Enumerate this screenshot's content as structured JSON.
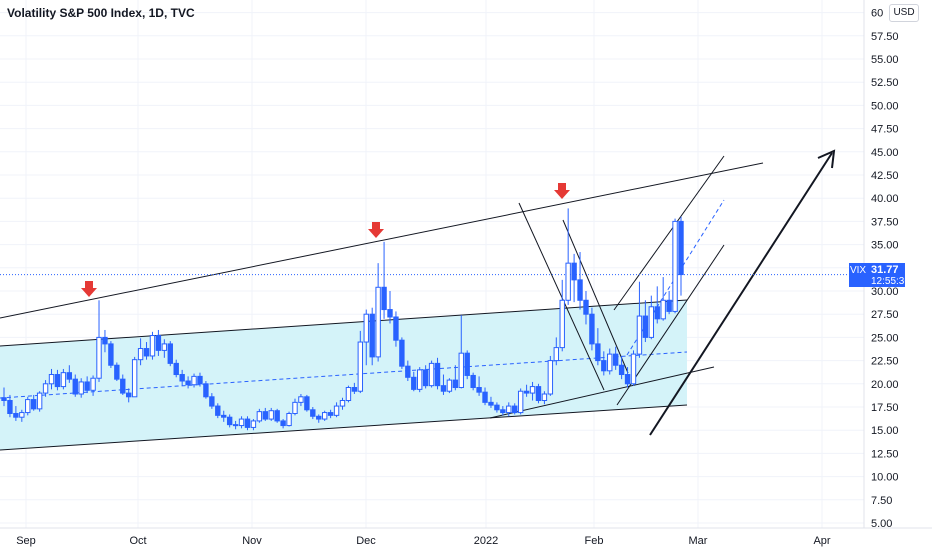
{
  "header": {
    "title": "Volatility S&P 500 Index, 1D, TVC",
    "currency": "USD"
  },
  "price_tag": {
    "symbol": "VIX",
    "last": "31.77",
    "countdown": "12:55:36"
  },
  "colors": {
    "up": "#2962ff",
    "down": "#2962ff",
    "channel_fill": "#d4f3f9",
    "arrow_red": "#e53935",
    "grid": "#f0f3fa",
    "last_price_line": "#2962ff"
  },
  "chart_data": {
    "type": "candlestick",
    "symbol": "VIX",
    "interval": "1D",
    "source": "TVC",
    "y_axis_labels": [
      "60",
      "57.50",
      "55.00",
      "52.50",
      "50.00",
      "47.50",
      "45.00",
      "42.50",
      "40.00",
      "37.50",
      "35.00",
      "32.50",
      "30.00",
      "27.50",
      "25.00",
      "22.50",
      "20.00",
      "17.50",
      "15.00",
      "12.50",
      "10.00",
      "7.50",
      "5.00"
    ],
    "ylim": [
      3.5,
      61
    ],
    "x_axis_labels": [
      "Sep",
      "Oct",
      "Nov",
      "Dec",
      "2022",
      "Feb",
      "Mar",
      "Apr"
    ],
    "last_price": 31.77,
    "ohlc": [
      [
        18.5,
        19.6,
        17.6,
        18.2
      ],
      [
        18.2,
        18.8,
        16.4,
        16.8
      ],
      [
        16.8,
        17.6,
        16.0,
        16.4
      ],
      [
        16.4,
        17.2,
        15.9,
        16.9
      ],
      [
        16.9,
        18.6,
        16.6,
        18.3
      ],
      [
        18.3,
        18.8,
        17.1,
        17.3
      ],
      [
        17.3,
        19.2,
        17.0,
        19.0
      ],
      [
        19.0,
        20.4,
        18.6,
        20.0
      ],
      [
        20.0,
        21.6,
        19.4,
        21.0
      ],
      [
        21.0,
        21.5,
        19.3,
        19.7
      ],
      [
        19.7,
        21.6,
        19.4,
        21.2
      ],
      [
        21.2,
        22.0,
        20.1,
        20.5
      ],
      [
        20.5,
        21.0,
        18.6,
        18.9
      ],
      [
        18.9,
        20.6,
        18.5,
        20.2
      ],
      [
        20.2,
        20.8,
        19.0,
        19.3
      ],
      [
        19.3,
        20.9,
        18.7,
        20.6
      ],
      [
        20.6,
        29.0,
        20.2,
        25.0
      ],
      [
        25.0,
        25.8,
        23.4,
        24.3
      ],
      [
        24.3,
        24.6,
        21.7,
        22.0
      ],
      [
        22.0,
        22.3,
        20.3,
        20.5
      ],
      [
        20.5,
        21.0,
        18.8,
        19.0
      ],
      [
        19.0,
        19.5,
        18.0,
        18.6
      ],
      [
        18.6,
        22.9,
        18.6,
        22.6
      ],
      [
        22.6,
        24.9,
        22.0,
        23.8
      ],
      [
        23.8,
        24.5,
        22.6,
        23.0
      ],
      [
        23.0,
        25.6,
        22.6,
        25.2
      ],
      [
        25.2,
        25.8,
        23.0,
        23.6
      ],
      [
        23.6,
        24.8,
        22.8,
        24.3
      ],
      [
        24.3,
        24.6,
        21.9,
        22.2
      ],
      [
        22.2,
        22.6,
        20.7,
        21.0
      ],
      [
        21.0,
        21.5,
        19.8,
        20.3
      ],
      [
        20.3,
        20.8,
        19.5,
        19.9
      ],
      [
        19.9,
        21.1,
        19.6,
        20.8
      ],
      [
        20.8,
        21.2,
        19.7,
        20.0
      ],
      [
        20.0,
        20.3,
        18.4,
        18.6
      ],
      [
        18.6,
        19.0,
        17.3,
        17.6
      ],
      [
        17.6,
        17.9,
        16.3,
        16.6
      ],
      [
        16.6,
        17.1,
        15.9,
        16.4
      ],
      [
        16.4,
        16.7,
        15.3,
        15.6
      ],
      [
        15.6,
        16.0,
        15.1,
        15.5
      ],
      [
        15.5,
        16.5,
        15.2,
        16.2
      ],
      [
        16.2,
        16.5,
        15.0,
        15.3
      ],
      [
        15.3,
        16.2,
        15.0,
        16.0
      ],
      [
        16.0,
        17.3,
        15.8,
        17.0
      ],
      [
        17.0,
        17.4,
        16.0,
        16.2
      ],
      [
        16.2,
        17.4,
        16.0,
        17.1
      ],
      [
        17.1,
        17.3,
        15.8,
        16.0
      ],
      [
        16.0,
        16.2,
        15.2,
        15.5
      ],
      [
        15.5,
        17.0,
        15.4,
        16.8
      ],
      [
        16.8,
        18.4,
        16.6,
        18.0
      ],
      [
        18.0,
        18.9,
        17.6,
        18.6
      ],
      [
        18.6,
        18.8,
        17.0,
        17.2
      ],
      [
        17.2,
        17.5,
        16.2,
        16.5
      ],
      [
        16.5,
        16.7,
        15.8,
        16.2
      ],
      [
        16.2,
        17.1,
        16.0,
        16.9
      ],
      [
        16.9,
        17.2,
        16.3,
        16.6
      ],
      [
        16.6,
        18.0,
        16.4,
        17.6
      ],
      [
        17.6,
        18.5,
        17.2,
        18.2
      ],
      [
        18.2,
        19.8,
        18.0,
        19.6
      ],
      [
        19.6,
        20.1,
        18.9,
        19.2
      ],
      [
        19.2,
        25.7,
        19.0,
        24.5
      ],
      [
        24.5,
        28.0,
        22.0,
        27.5
      ],
      [
        27.5,
        28.2,
        22.0,
        22.9
      ],
      [
        22.9,
        33.0,
        22.4,
        30.4
      ],
      [
        30.4,
        35.3,
        27.0,
        28.0
      ],
      [
        28.0,
        30.0,
        26.5,
        27.2
      ],
      [
        27.2,
        27.8,
        24.0,
        24.7
      ],
      [
        24.7,
        25.0,
        21.6,
        21.9
      ],
      [
        21.9,
        22.5,
        20.3,
        20.7
      ],
      [
        20.7,
        21.3,
        19.2,
        19.4
      ],
      [
        19.4,
        21.8,
        19.1,
        21.5
      ],
      [
        21.5,
        22.0,
        19.5,
        19.8
      ],
      [
        19.8,
        22.5,
        19.6,
        22.2
      ],
      [
        22.2,
        22.8,
        19.4,
        19.8
      ],
      [
        19.8,
        21.0,
        18.8,
        19.2
      ],
      [
        19.2,
        20.6,
        19.0,
        20.4
      ],
      [
        20.4,
        22.0,
        19.3,
        19.6
      ],
      [
        19.6,
        27.4,
        19.5,
        23.3
      ],
      [
        23.3,
        23.6,
        20.5,
        20.9
      ],
      [
        20.9,
        21.2,
        19.3,
        19.6
      ],
      [
        19.6,
        20.8,
        18.7,
        19.1
      ],
      [
        19.1,
        19.6,
        17.7,
        18.0
      ],
      [
        18.0,
        18.6,
        17.4,
        17.7
      ],
      [
        17.7,
        18.0,
        16.9,
        17.2
      ],
      [
        17.2,
        17.6,
        16.6,
        16.9
      ],
      [
        16.9,
        18.0,
        16.5,
        17.6
      ],
      [
        17.6,
        17.9,
        16.7,
        16.9
      ],
      [
        16.9,
        19.5,
        16.7,
        19.2
      ],
      [
        19.2,
        19.9,
        18.6,
        19.0
      ],
      [
        19.0,
        20.2,
        18.2,
        19.7
      ],
      [
        19.7,
        20.0,
        17.9,
        18.2
      ],
      [
        18.2,
        19.2,
        17.8,
        18.9
      ],
      [
        18.9,
        23.0,
        18.7,
        22.5
      ],
      [
        22.5,
        25.0,
        22.0,
        23.9
      ],
      [
        23.9,
        31.2,
        23.5,
        29.0
      ],
      [
        29.0,
        38.9,
        28.5,
        33.0
      ],
      [
        33.0,
        34.0,
        28.8,
        31.2
      ],
      [
        31.2,
        34.2,
        28.0,
        29.0
      ],
      [
        29.0,
        30.0,
        26.4,
        27.5
      ],
      [
        27.5,
        28.2,
        23.6,
        24.3
      ],
      [
        24.3,
        26.0,
        22.0,
        22.5
      ],
      [
        22.5,
        23.5,
        20.9,
        21.4
      ],
      [
        21.4,
        23.8,
        21.0,
        23.2
      ],
      [
        23.2,
        24.0,
        21.5,
        22.0
      ],
      [
        22.0,
        23.0,
        20.5,
        21.0
      ],
      [
        21.0,
        21.8,
        19.6,
        20.0
      ],
      [
        20.0,
        23.6,
        19.8,
        23.2
      ],
      [
        23.2,
        31.0,
        22.8,
        27.3
      ],
      [
        27.3,
        29.0,
        24.5,
        25.0
      ],
      [
        25.0,
        29.5,
        24.8,
        28.3
      ],
      [
        28.3,
        30.5,
        26.5,
        27.0
      ],
      [
        27.0,
        31.5,
        26.8,
        29.0
      ],
      [
        29.0,
        30.0,
        27.5,
        27.8
      ],
      [
        27.8,
        37.8,
        27.6,
        37.5
      ],
      [
        37.5,
        38.0,
        29.5,
        31.77
      ]
    ],
    "drawings": {
      "channel_fill_label": "",
      "resistance_line_label": "",
      "arrow_down_markers": 3,
      "arrow_up_projection": true
    }
  }
}
